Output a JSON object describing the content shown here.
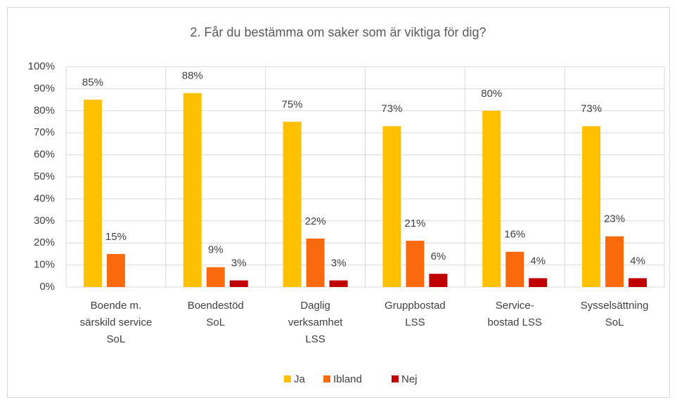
{
  "chart_data": {
    "type": "bar",
    "title": "2. Får du bestämma om saker som är viktiga för dig?",
    "categories": [
      "Boende m.\nsärskild service\nSoL",
      "Boendestöd\nSoL",
      "Daglig\nverksamhet\nLSS",
      "Gruppbostad\nLSS",
      "Service-\nbostad LSS",
      "Sysselsättning\nSoL"
    ],
    "series": [
      {
        "name": "Ja",
        "color": "#FFC000",
        "values": [
          85,
          88,
          75,
          73,
          80,
          73
        ],
        "value_labels": [
          "85%",
          "88%",
          "75%",
          "73%",
          "80%",
          "73%"
        ]
      },
      {
        "name": "Ibland",
        "color": "#F96A0C",
        "values": [
          15,
          9,
          22,
          21,
          16,
          23
        ],
        "value_labels": [
          "15%",
          "9%",
          "22%",
          "21%",
          "16%",
          "23%"
        ]
      },
      {
        "name": "Nej",
        "color": "#C00000",
        "values": [
          null,
          3,
          3,
          6,
          4,
          4
        ],
        "value_labels": [
          null,
          "3%",
          "3%",
          "6%",
          "4%",
          "4%"
        ]
      }
    ],
    "ylim": [
      0,
      100
    ],
    "yticks": [
      {
        "value": 0,
        "label": "0%"
      },
      {
        "value": 10,
        "label": "10%"
      },
      {
        "value": 20,
        "label": "20%"
      },
      {
        "value": 30,
        "label": "30%"
      },
      {
        "value": 40,
        "label": "40%"
      },
      {
        "value": 50,
        "label": "50%"
      },
      {
        "value": 60,
        "label": "60%"
      },
      {
        "value": 70,
        "label": "70%"
      },
      {
        "value": 80,
        "label": "80%"
      },
      {
        "value": 90,
        "label": "90%"
      },
      {
        "value": 100,
        "label": "100%"
      }
    ],
    "grid": true,
    "legend": "bottom"
  }
}
